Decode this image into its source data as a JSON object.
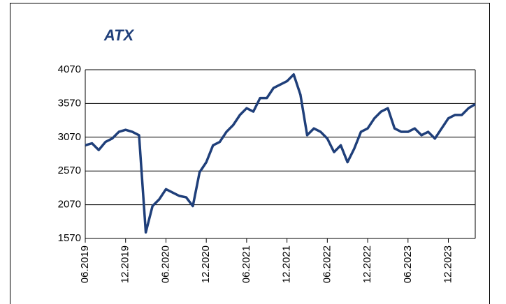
{
  "chart_data": {
    "type": "line",
    "title": "ATX",
    "x": [
      "06.2019",
      "07.2019",
      "08.2019",
      "09.2019",
      "10.2019",
      "11.2019",
      "12.2019",
      "01.2020",
      "02.2020",
      "03.2020",
      "04.2020",
      "05.2020",
      "06.2020",
      "07.2020",
      "08.2020",
      "09.2020",
      "10.2020",
      "11.2020",
      "12.2020",
      "01.2021",
      "02.2021",
      "03.2021",
      "04.2021",
      "05.2021",
      "06.2021",
      "07.2021",
      "08.2021",
      "09.2021",
      "10.2021",
      "11.2021",
      "12.2021",
      "01.2022",
      "02.2022",
      "03.2022",
      "04.2022",
      "05.2022",
      "06.2022",
      "07.2022",
      "08.2022",
      "09.2022",
      "10.2022",
      "11.2022",
      "12.2022",
      "01.2023",
      "02.2023",
      "03.2023",
      "04.2023",
      "05.2023",
      "06.2023",
      "07.2023",
      "08.2023",
      "09.2023",
      "10.2023",
      "11.2023",
      "12.2023",
      "01.2024",
      "02.2024",
      "03.2024",
      "04.2024"
    ],
    "series": [
      {
        "name": "ATX",
        "color": "#1f3f7a",
        "values": [
          2950,
          2980,
          2880,
          3000,
          3050,
          3150,
          3180,
          3150,
          3100,
          1660,
          2050,
          2150,
          2300,
          2250,
          2200,
          2180,
          2050,
          2550,
          2700,
          2950,
          3000,
          3150,
          3250,
          3400,
          3500,
          3450,
          3650,
          3650,
          3800,
          3850,
          3900,
          4000,
          3700,
          3100,
          3200,
          3150,
          3050,
          2850,
          2950,
          2700,
          2900,
          3150,
          3200,
          3350,
          3450,
          3500,
          3200,
          3150,
          3150,
          3200,
          3100,
          3150,
          3050,
          3200,
          3350,
          3400,
          3400,
          3500,
          3560
        ]
      }
    ],
    "xlim": [
      "06.2019",
      "04.2024"
    ],
    "xticks": [
      "06.2019",
      "12.2019",
      "06.2020",
      "12.2020",
      "06.2021",
      "12.2021",
      "06.2022",
      "12.2022",
      "06.2023",
      "12.2023"
    ],
    "ylim": [
      1570,
      4070
    ],
    "yticks": [
      1570,
      2070,
      2570,
      3070,
      3570,
      4070
    ],
    "grid": true
  }
}
